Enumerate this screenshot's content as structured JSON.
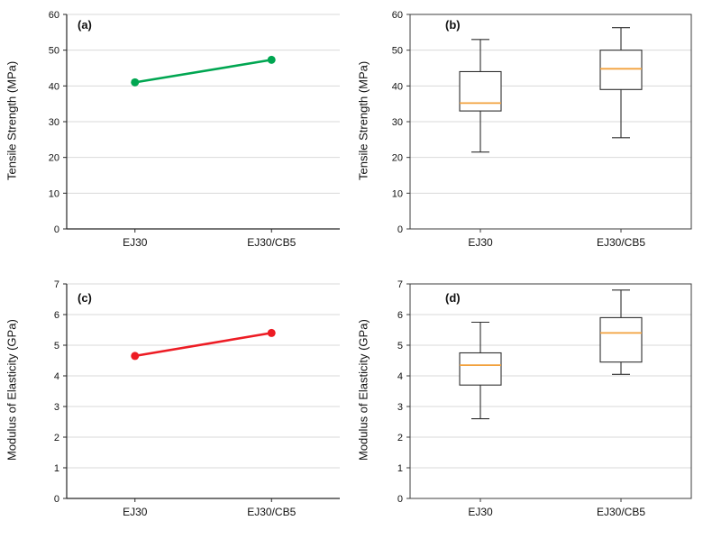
{
  "page": {
    "background": "#ffffff"
  },
  "chart_data": [
    {
      "panel_label": "(a)",
      "type": "line",
      "categories": [
        "EJ30",
        "EJ30/CB5"
      ],
      "values": [
        41.0,
        47.3
      ],
      "ylabel": "Tensile Strength (MPa)",
      "ylim": [
        0,
        60
      ],
      "ytick_step": 10,
      "line_color": "#00a651",
      "axis_color": "#262626",
      "grid_color": "#d9d9d9",
      "grid": true,
      "frame": "axes"
    },
    {
      "panel_label": "(b)",
      "type": "boxplot",
      "categories": [
        "EJ30",
        "EJ30/CB5"
      ],
      "boxes": [
        {
          "min": 21.5,
          "q1": 33.0,
          "median": 35.2,
          "q3": 44.0,
          "max": 53.0
        },
        {
          "min": 25.5,
          "q1": 39.0,
          "median": 44.8,
          "q3": 50.0,
          "max": 56.3
        }
      ],
      "ylabel": "Tensile Strength (MPa)",
      "ylim": [
        0,
        60
      ],
      "ytick_step": 10,
      "box_color": "#2f2f2f",
      "median_color": "#f2a13c",
      "axis_color": "#3c3c3c",
      "grid_color": "#d9d9d9",
      "grid": true,
      "frame": "box"
    },
    {
      "panel_label": "(c)",
      "type": "line",
      "categories": [
        "EJ30",
        "EJ30/CB5"
      ],
      "values": [
        4.65,
        5.4
      ],
      "ylabel": "Modulus of Elasticity (GPa)",
      "ylim": [
        0,
        7
      ],
      "ytick_step": 1,
      "line_color": "#ed1c24",
      "axis_color": "#262626",
      "grid_color": "#d9d9d9",
      "grid": true,
      "frame": "axes"
    },
    {
      "panel_label": "(d)",
      "type": "boxplot",
      "categories": [
        "EJ30",
        "EJ30/CB5"
      ],
      "boxes": [
        {
          "min": 2.6,
          "q1": 3.7,
          "median": 4.35,
          "q3": 4.75,
          "max": 5.75
        },
        {
          "min": 4.05,
          "q1": 4.45,
          "median": 5.4,
          "q3": 5.9,
          "max": 6.8
        }
      ],
      "ylabel": "Modulus of Elasticity (GPa)",
      "ylim": [
        0,
        7
      ],
      "ytick_step": 1,
      "box_color": "#2f2f2f",
      "median_color": "#f2a13c",
      "axis_color": "#3c3c3c",
      "grid_color": "#d9d9d9",
      "grid": true,
      "frame": "box"
    }
  ]
}
